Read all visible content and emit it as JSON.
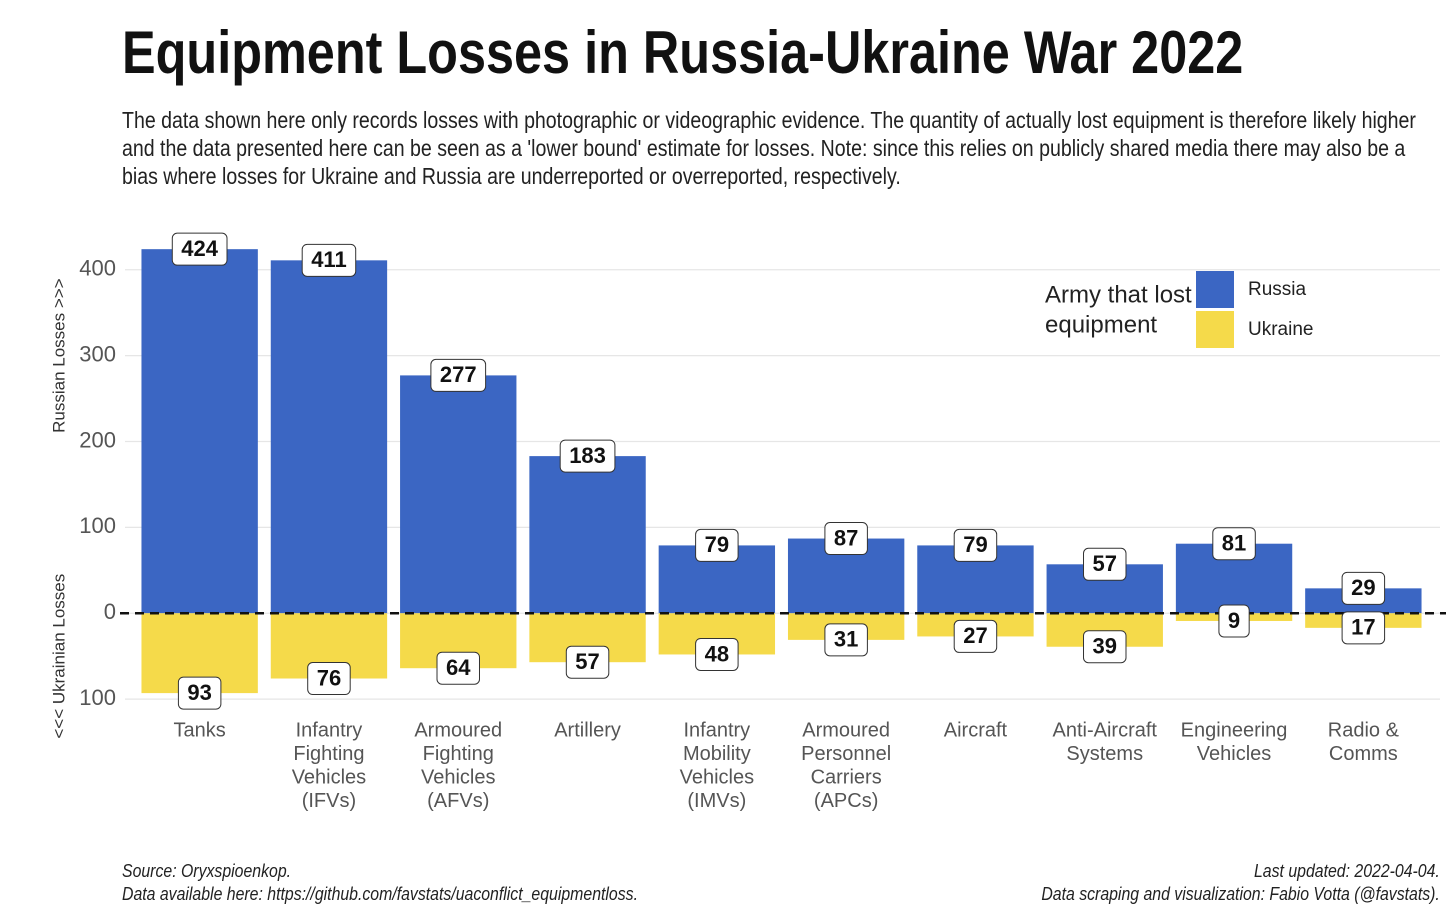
{
  "chart_data": {
    "type": "diverging_bar",
    "title": "Equipment Losses in Russia-Ukraine War 2022",
    "subtitle": "The data shown here only records losses with photographic or videographic evidence. The quantity of actually lost equipment is therefore likely higher and the data presented here can be seen as a 'lower bound' estimate for losses. Note: since this relies on publicly shared media there may also be a bias where losses for Ukraine and Russia are underreported or overreported, respectively.",
    "y_label_top": "Russian Losses >>>",
    "y_label_bottom": "<<< Ukrainian Losses",
    "legend_title": [
      "Army that lost",
      "equipment"
    ],
    "legend_position": "upper right",
    "categories": [
      [
        "Tanks"
      ],
      [
        "Infantry",
        "Fighting",
        "Vehicles",
        "(IFVs)"
      ],
      [
        "Armoured",
        "Fighting",
        "Vehicles",
        "(AFVs)"
      ],
      [
        "Artillery"
      ],
      [
        "Infantry",
        "Mobility",
        "Vehicles",
        "(IMVs)"
      ],
      [
        "Armoured",
        "Personnel",
        "Carriers",
        "(APCs)"
      ],
      [
        "Aircraft"
      ],
      [
        "Anti-Aircraft",
        "Systems"
      ],
      [
        "Engineering",
        "Vehicles"
      ],
      [
        "Radio &",
        "Comms"
      ]
    ],
    "series": [
      {
        "name": "Russia",
        "color": "#3b66c3",
        "values": [
          424,
          411,
          277,
          183,
          79,
          87,
          79,
          57,
          81,
          29
        ]
      },
      {
        "name": "Ukraine",
        "color": "#f5da4a",
        "values": [
          -93,
          -76,
          -64,
          -57,
          -48,
          -31,
          -27,
          -39,
          -9,
          -17
        ],
        "value_labels": [
          "93",
          "76",
          "64",
          "57",
          "48",
          "31",
          "27",
          "39",
          "9",
          "17"
        ]
      }
    ],
    "ylim": [
      -115,
      444
    ],
    "yticks": [
      {
        "value": -100,
        "label": "100"
      },
      0,
      100,
      200,
      300,
      400
    ],
    "grid": true,
    "source": [
      "Source: Oryxspioenkop.",
      "Data available here: https://github.com/favstats/uaconflict_equipmentloss."
    ],
    "credits": [
      "Last updated: 2022-04-04.",
      "Data scraping and visualization: Fabio Votta (@favstats)."
    ]
  }
}
